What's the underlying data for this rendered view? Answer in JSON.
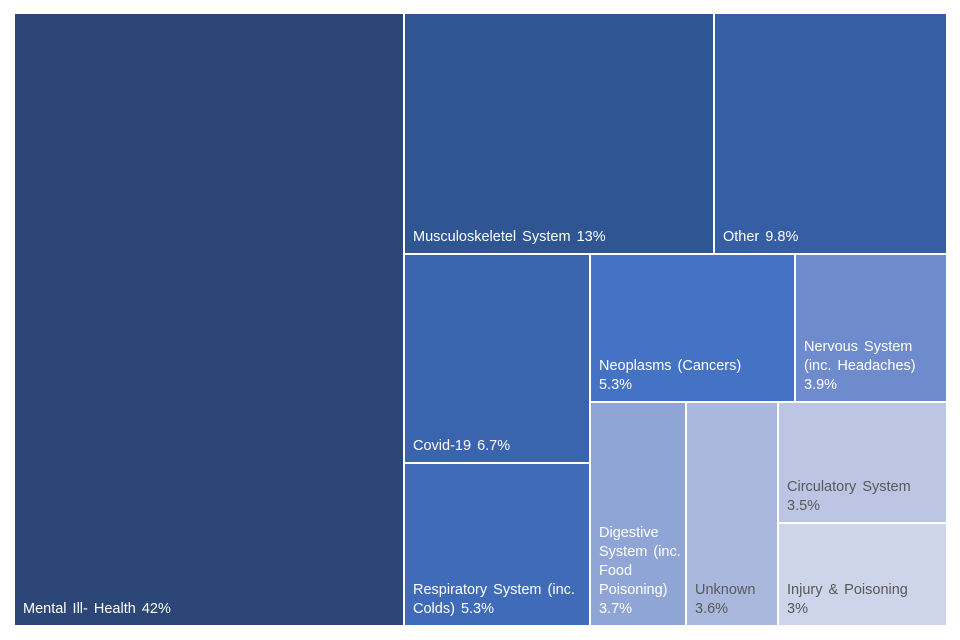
{
  "chart_data": {
    "type": "treemap",
    "title": "",
    "unit": "%",
    "items": [
      {
        "name": "Mental Ill- Health",
        "value": 42,
        "value_label": "42%",
        "color": "#2B4677",
        "label_color": "#ffffff",
        "inline": true
      },
      {
        "name": "Musculoskeletel System",
        "value": 13,
        "value_label": "13%",
        "color": "#305593",
        "label_color": "#ffffff",
        "inline": true
      },
      {
        "name": "Other",
        "value": 9.8,
        "value_label": "9.8%",
        "color": "#355EA5",
        "label_color": "#ffffff",
        "inline": true
      },
      {
        "name": "Covid-19",
        "value": 6.7,
        "value_label": "6.7%",
        "color": "#3B64AE",
        "label_color": "#ffffff",
        "inline": true
      },
      {
        "name": "Neoplasms (Cancers)",
        "value": 5.3,
        "value_label": "5.3%",
        "color": "#4472C4",
        "label_color": "#ffffff",
        "inline": false
      },
      {
        "name": "Nervous System (inc. Headaches)",
        "value": 3.9,
        "value_label": "3.9%",
        "color": "#6E8CCD",
        "label_color": "#ffffff",
        "inline": false
      },
      {
        "name": "Respiratory System (inc. Colds)",
        "value": 5.3,
        "value_label": "5.3%",
        "color": "#3F6BB9",
        "label_color": "#ffffff",
        "inline": true
      },
      {
        "name": "Digestive System (inc. Food Poisoning)",
        "value": 3.7,
        "value_label": "3.7%",
        "color": "#8FA5D5",
        "label_color": "#ffffff",
        "inline": false
      },
      {
        "name": "Unknown",
        "value": 3.6,
        "value_label": "3.6%",
        "color": "#A9B8DC",
        "label_color": "#595959",
        "inline": false
      },
      {
        "name": "Circulatory System",
        "value": 3.5,
        "value_label": "3.5%",
        "color": "#BCC6E4",
        "label_color": "#595959",
        "inline": false
      },
      {
        "name": "Injury & Poisoning",
        "value": 3,
        "value_label": "3%",
        "color": "#CED5EA",
        "label_color": "#595959",
        "inline": false
      }
    ]
  }
}
